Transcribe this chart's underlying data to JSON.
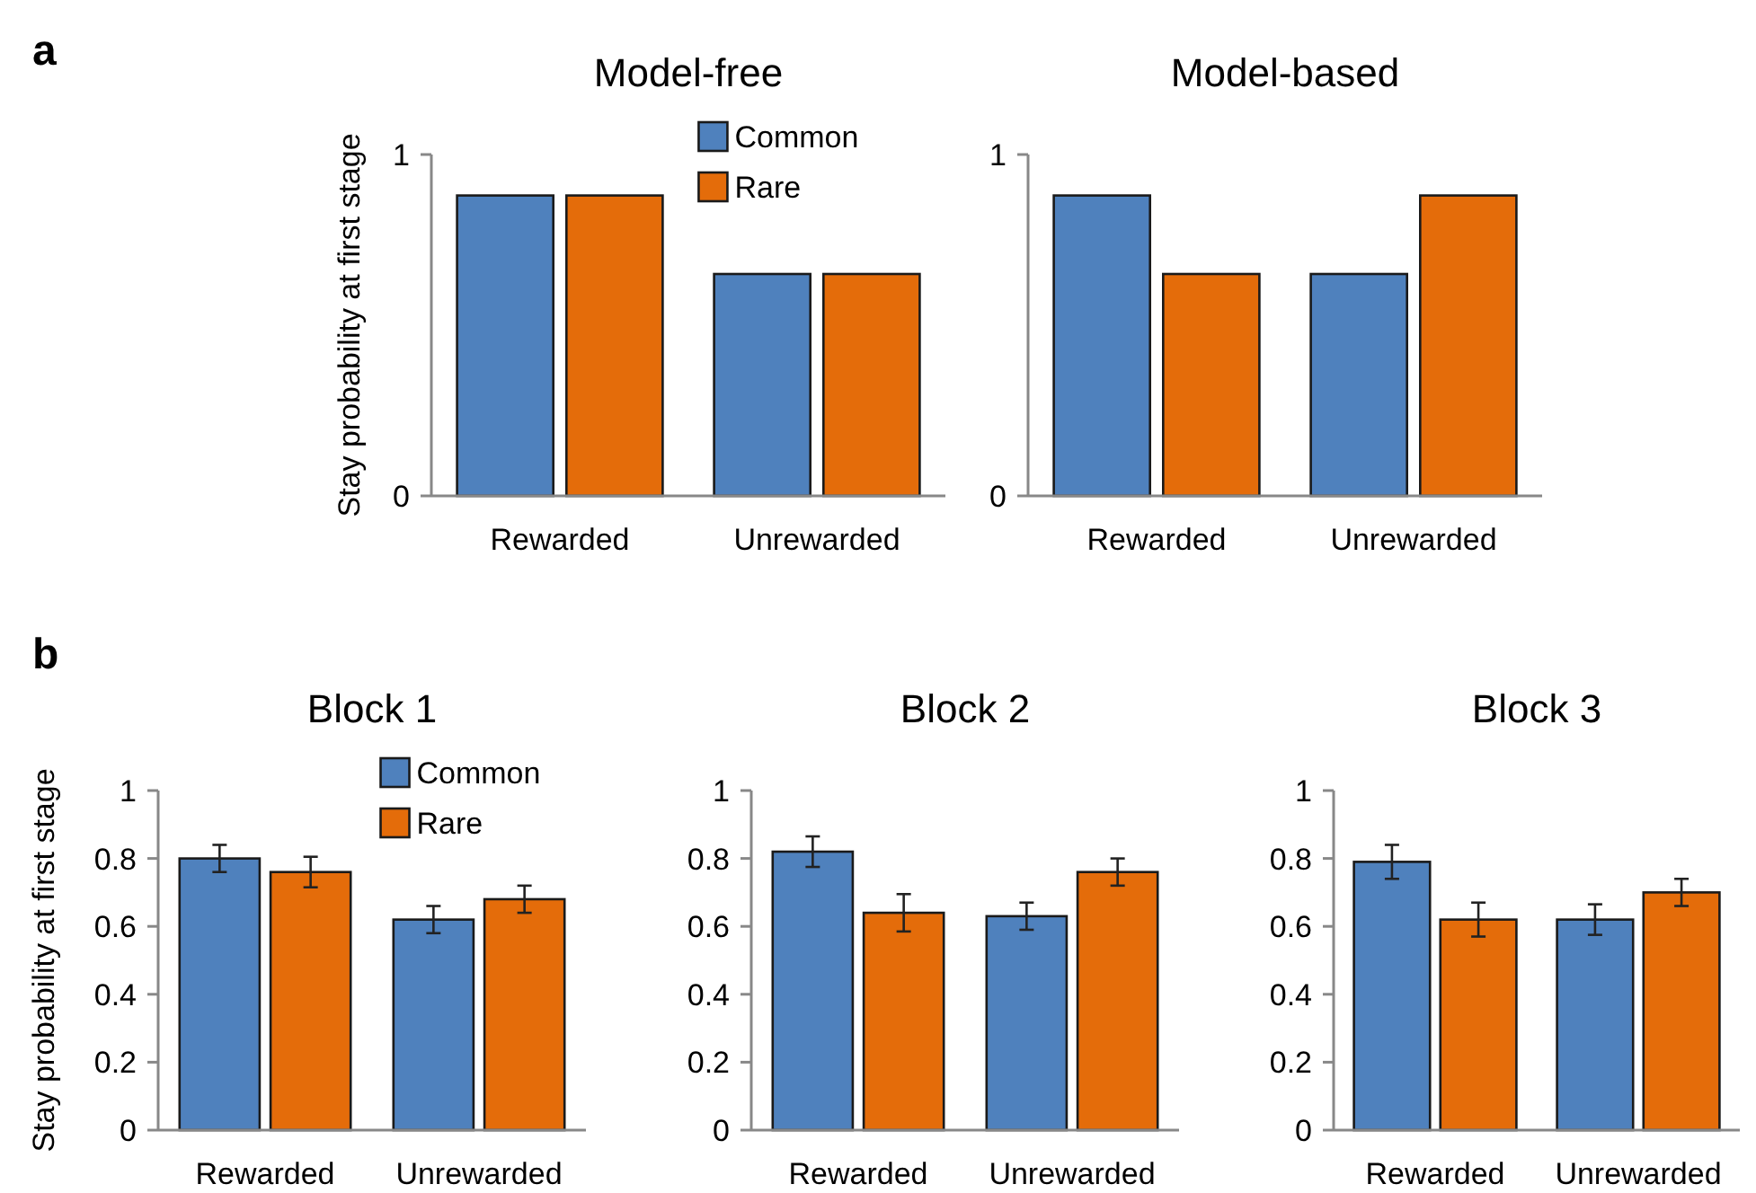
{
  "chart_data": [
    {
      "type": "bar",
      "title": "Model-free",
      "ylabel": "Stay probability at first stage",
      "annotations": [
        "a"
      ],
      "categories": [
        "Rewarded",
        "Unrewarded"
      ],
      "series": [
        {
          "name": "Common",
          "color": "#4f81bd",
          "values": [
            0.88,
            0.65
          ]
        },
        {
          "name": "Rare",
          "color": "#e46c0a",
          "values": [
            0.88,
            0.65
          ]
        }
      ],
      "ylim": [
        0,
        1
      ],
      "yticks": [
        0,
        1
      ],
      "legend": "top right"
    },
    {
      "type": "bar",
      "title": "Model-based",
      "categories": [
        "Rewarded",
        "Unrewarded"
      ],
      "series": [
        {
          "color": "#4f81bd",
          "values": [
            0.88,
            0.65
          ]
        },
        {
          "color": "#e46c0a",
          "values": [
            0.65,
            0.88
          ]
        }
      ],
      "ylim": [
        0,
        1
      ],
      "yticks": [
        0,
        1
      ]
    },
    {
      "type": "bar",
      "title": "Block 1",
      "ylabel": "Stay probability at first stage",
      "annotations": [
        "b"
      ],
      "categories": [
        "Rewarded",
        "Unrewarded"
      ],
      "series": [
        {
          "name": "Common",
          "color": "#4f81bd",
          "values": [
            0.8,
            0.62
          ],
          "errors": [
            0.04,
            0.04
          ]
        },
        {
          "name": "Rare",
          "color": "#e46c0a",
          "values": [
            0.76,
            0.68
          ],
          "errors": [
            0.045,
            0.04
          ]
        }
      ],
      "ylim": [
        0,
        1
      ],
      "yticks": [
        0,
        0.2,
        0.4,
        0.6,
        0.8,
        1
      ],
      "legend": "top right"
    },
    {
      "type": "bar",
      "title": "Block 2",
      "categories": [
        "Rewarded",
        "Unrewarded"
      ],
      "series": [
        {
          "color": "#4f81bd",
          "values": [
            0.82,
            0.63
          ],
          "errors": [
            0.045,
            0.04
          ]
        },
        {
          "color": "#e46c0a",
          "values": [
            0.64,
            0.76
          ],
          "errors": [
            0.055,
            0.04
          ]
        }
      ],
      "ylim": [
        0,
        1
      ],
      "yticks": [
        0,
        0.2,
        0.4,
        0.6,
        0.8,
        1
      ]
    },
    {
      "type": "bar",
      "title": "Block 3",
      "categories": [
        "Rewarded",
        "Unrewarded"
      ],
      "series": [
        {
          "color": "#4f81bd",
          "values": [
            0.79,
            0.62
          ],
          "errors": [
            0.05,
            0.045
          ]
        },
        {
          "color": "#e46c0a",
          "values": [
            0.62,
            0.7
          ],
          "errors": [
            0.05,
            0.04
          ]
        }
      ],
      "ylim": [
        0,
        1
      ],
      "yticks": [
        0,
        0.2,
        0.4,
        0.6,
        0.8,
        1
      ]
    }
  ]
}
